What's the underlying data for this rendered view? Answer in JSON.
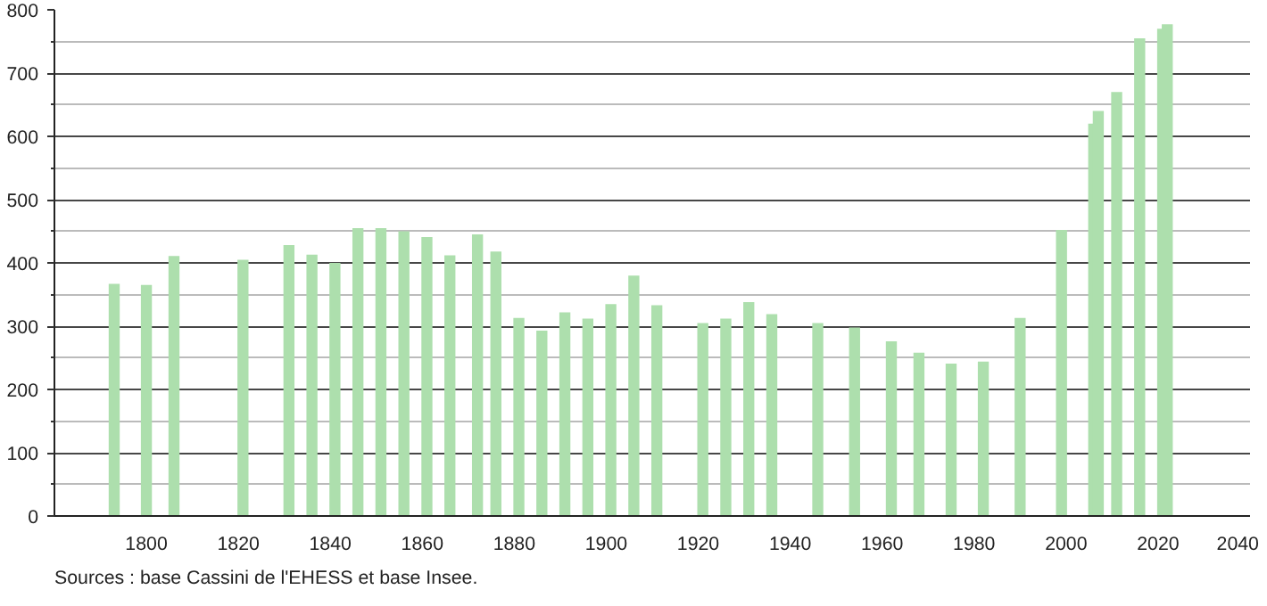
{
  "chart_data": {
    "type": "bar",
    "x": [
      1793,
      1800,
      1806,
      1821,
      1831,
      1836,
      1841,
      1846,
      1851,
      1856,
      1861,
      1866,
      1872,
      1876,
      1881,
      1886,
      1891,
      1896,
      1901,
      1906,
      1911,
      1921,
      1926,
      1931,
      1936,
      1946,
      1954,
      1962,
      1968,
      1975,
      1982,
      1990,
      1999,
      2006,
      2007,
      2011,
      2016,
      2021,
      2022
    ],
    "values": [
      367,
      365,
      411,
      405,
      428,
      413,
      400,
      455,
      455,
      450,
      441,
      412,
      445,
      418,
      313,
      293,
      322,
      312,
      335,
      380,
      333,
      305,
      312,
      338,
      319,
      305,
      298,
      276,
      258,
      241,
      244,
      313,
      452,
      620,
      640,
      670,
      755,
      770,
      777
    ],
    "color": "#addfad",
    "xlim": [
      1780,
      2040
    ],
    "xticks": [
      1800,
      1820,
      1840,
      1860,
      1880,
      1900,
      1920,
      1940,
      1960,
      1980,
      2000,
      2020,
      2040
    ],
    "ylim": [
      0,
      800
    ],
    "yticks": [
      0,
      100,
      200,
      300,
      400,
      500,
      600,
      700,
      800
    ],
    "grid": "y",
    "annotations": [
      "Sources : base Cassini de l'EHESS et base Insee."
    ]
  }
}
